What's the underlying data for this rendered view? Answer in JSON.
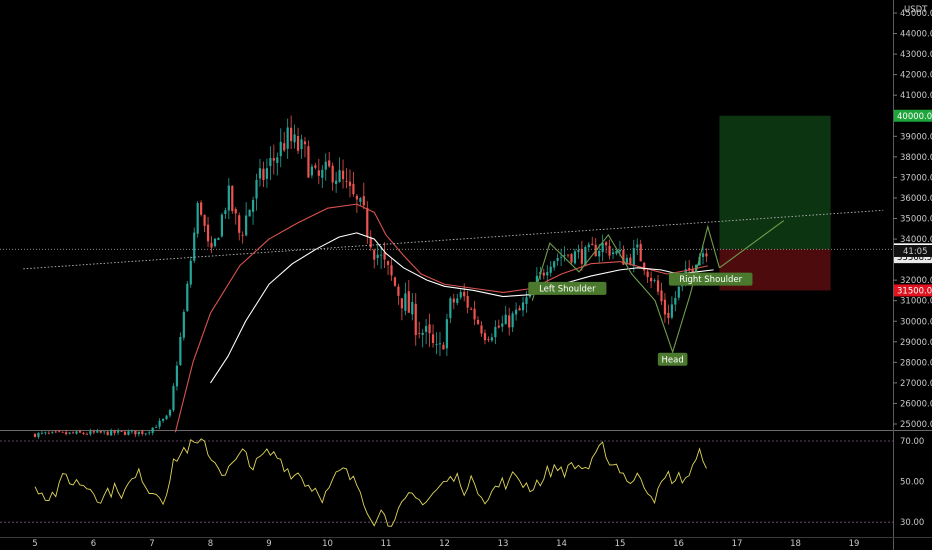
{
  "axis": {
    "currency": "USDT"
  },
  "chart_data": [
    {
      "type": "candlestick",
      "ylim": [
        24500,
        45000
      ],
      "x_ticks": [
        "5",
        "6",
        "7",
        "8",
        "9",
        "10",
        "11",
        "12",
        "13",
        "14",
        "15",
        "16",
        "17",
        "18",
        "19"
      ],
      "y_ticks": [
        "25000.00",
        "26000.00",
        "27000.00",
        "28000.00",
        "29000.00",
        "30000.00",
        "31000.00",
        "32000.00",
        "33000.00",
        "34000.00",
        "35000.00",
        "36000.00",
        "37000.00",
        "38000.00",
        "39000.00",
        "41000.00",
        "42000.00",
        "43000.00",
        "44000.00",
        "45000.00"
      ],
      "close_path": [
        [
          5.0,
          24500
        ],
        [
          6.9,
          24600
        ],
        [
          7.3,
          25400
        ],
        [
          7.55,
          30500
        ],
        [
          7.8,
          36000
        ],
        [
          8.0,
          33000
        ],
        [
          8.3,
          36200
        ],
        [
          8.5,
          34200
        ],
        [
          8.8,
          36600
        ],
        [
          9.3,
          38900
        ],
        [
          9.6,
          38200
        ],
        [
          9.8,
          36800
        ],
        [
          10.1,
          37400
        ],
        [
          10.3,
          36500
        ],
        [
          10.6,
          35200
        ],
        [
          10.8,
          33600
        ],
        [
          11.0,
          32500
        ],
        [
          11.3,
          31000
        ],
        [
          11.5,
          30000
        ],
        [
          11.7,
          29200
        ],
        [
          11.9,
          28200
        ],
        [
          12.1,
          30800
        ],
        [
          12.3,
          31300
        ],
        [
          12.5,
          30300
        ],
        [
          12.7,
          29400
        ],
        [
          13.0,
          29800
        ],
        [
          13.3,
          30500
        ],
        [
          13.6,
          32000
        ],
        [
          13.8,
          33000
        ],
        [
          14.1,
          33300
        ],
        [
          14.4,
          33200
        ],
        [
          14.7,
          33700
        ],
        [
          15.1,
          33000
        ],
        [
          15.3,
          33400
        ],
        [
          15.6,
          31800
        ],
        [
          15.8,
          30200
        ],
        [
          16.0,
          31500
        ],
        [
          16.3,
          33100
        ],
        [
          16.5,
          33600
        ]
      ],
      "ema_fast": [
        [
          7.4,
          24600
        ],
        [
          7.7,
          28000
        ],
        [
          8.0,
          30400
        ],
        [
          8.5,
          32700
        ],
        [
          9.0,
          34000
        ],
        [
          9.5,
          34800
        ],
        [
          10.0,
          35500
        ],
        [
          10.5,
          35700
        ],
        [
          10.8,
          35300
        ],
        [
          11.0,
          34200
        ],
        [
          11.3,
          33200
        ],
        [
          11.6,
          32300
        ],
        [
          12.0,
          31800
        ],
        [
          12.5,
          31600
        ],
        [
          13.0,
          31400
        ],
        [
          13.5,
          31600
        ],
        [
          14.0,
          32300
        ],
        [
          14.5,
          32800
        ],
        [
          15.0,
          32900
        ],
        [
          15.4,
          32600
        ],
        [
          15.8,
          32300
        ],
        [
          16.2,
          32500
        ],
        [
          16.5,
          32700
        ]
      ],
      "ema_slow": [
        [
          8.0,
          27000
        ],
        [
          8.3,
          28300
        ],
        [
          8.6,
          30000
        ],
        [
          9.0,
          31800
        ],
        [
          9.4,
          32800
        ],
        [
          9.8,
          33500
        ],
        [
          10.2,
          34100
        ],
        [
          10.5,
          34300
        ],
        [
          10.8,
          34000
        ],
        [
          11.0,
          33300
        ],
        [
          11.3,
          32600
        ],
        [
          11.7,
          32000
        ],
        [
          12.0,
          31700
        ],
        [
          12.5,
          31500
        ],
        [
          13.0,
          31200
        ],
        [
          13.5,
          31300
        ],
        [
          14.0,
          31800
        ],
        [
          14.5,
          32200
        ],
        [
          15.0,
          32500
        ],
        [
          15.3,
          32600
        ],
        [
          15.7,
          32500
        ],
        [
          16.0,
          32300
        ],
        [
          16.3,
          32400
        ],
        [
          16.6,
          32500
        ]
      ],
      "rsi": {
        "ylim": [
          27,
          75
        ],
        "y_ticks": [
          "70.00",
          "50.00",
          "30.00"
        ],
        "bands": [
          70,
          30
        ]
      },
      "position": {
        "target": 40000,
        "entry": 33500,
        "stop": 31500,
        "x_range": [
          16.7,
          18.6
        ]
      },
      "price_labels": [
        {
          "text": "40000.00",
          "price": 40000,
          "color": "#1ea53b"
        },
        {
          "text": "33500.00",
          "price": 33500,
          "color": "#ffffff"
        },
        {
          "text": "33368.50",
          "price": 33120,
          "color": "#e8e8e8",
          "sub": "41:05",
          "sub_price": 33420
        },
        {
          "text": "31500.00",
          "price": 31500,
          "color": "#e0121f"
        }
      ],
      "pattern": {
        "points": [
          [
            13.5,
            31000
          ],
          [
            13.8,
            33800
          ],
          [
            14.3,
            32400
          ],
          [
            14.8,
            34200
          ],
          [
            15.2,
            32300
          ],
          [
            15.6,
            31000
          ],
          [
            15.9,
            28500
          ],
          [
            16.2,
            31300
          ],
          [
            16.5,
            34600
          ],
          [
            16.7,
            32600
          ]
        ],
        "projection": [
          [
            16.7,
            32600
          ],
          [
            17.8,
            34900
          ]
        ],
        "neckline": [
          [
            4.8,
            32550
          ],
          [
            19.5,
            35400
          ]
        ],
        "labels": [
          {
            "text": "Left Shoulder",
            "x": 14.1,
            "price": 31600
          },
          {
            "text": "Head",
            "x": 15.9,
            "price": 28150
          },
          {
            "text": "Right Shoulder",
            "x": 16.55,
            "price": 32050
          }
        ]
      }
    }
  ]
}
